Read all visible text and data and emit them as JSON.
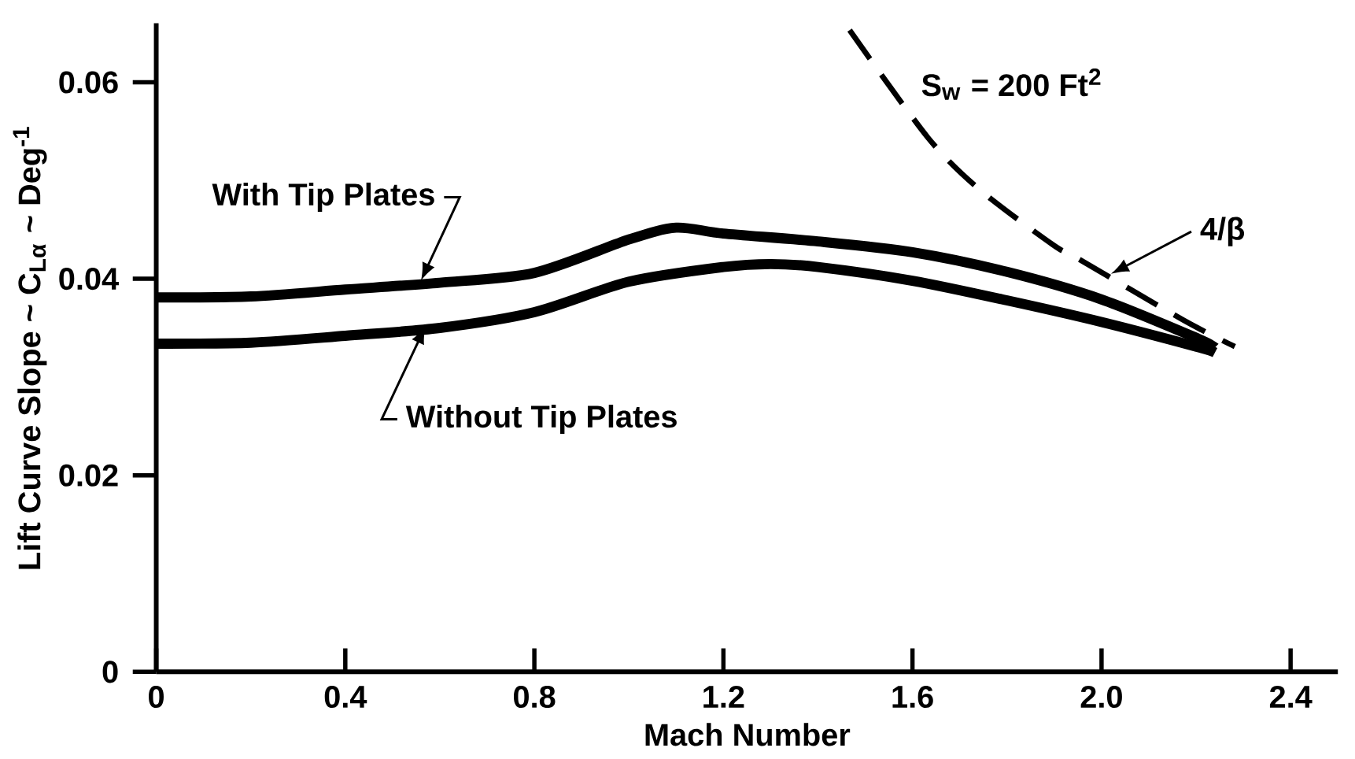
{
  "chart_data": {
    "type": "line",
    "xlabel": "Mach Number",
    "ylabel": "Lift Curve Slope ~ C$_{Lα}$ ~ Deg$^{-1}$",
    "xlim": [
      0,
      2.5
    ],
    "ylim": [
      0,
      0.066
    ],
    "xticks": [
      0,
      0.4,
      0.8,
      1.2,
      1.6,
      {
        "value": 2,
        "label": "2.0"
      },
      2.4
    ],
    "yticks": [
      0,
      0.02,
      0.04,
      0.06
    ],
    "grid": false,
    "marker": "none",
    "series": [
      {
        "color": "#000000",
        "line_style": "solid",
        "x": [
          0,
          0.2,
          0.4,
          0.6,
          0.8,
          1.0,
          1.1,
          1.2,
          1.4,
          1.6,
          1.8,
          2.0,
          2.2,
          2.24
        ],
        "values": [
          0.0381,
          0.0382,
          0.0389,
          0.0396,
          0.0406,
          0.044,
          0.0452,
          0.0446,
          0.0438,
          0.0427,
          0.0407,
          0.0379,
          0.034,
          0.033
        ]
      },
      {
        "color": "#000000",
        "line_style": "solid",
        "x": [
          0,
          0.2,
          0.4,
          0.6,
          0.8,
          1.0,
          1.2,
          1.3,
          1.4,
          1.6,
          1.8,
          2.0,
          2.2,
          2.24
        ],
        "values": [
          0.0334,
          0.0335,
          0.0342,
          0.035,
          0.0366,
          0.0397,
          0.0412,
          0.0415,
          0.0412,
          0.0398,
          0.0378,
          0.0356,
          0.0331,
          0.0325
        ]
      },
      {
        "color": "#000000",
        "line_style": "dashed",
        "x": [
          1.467,
          1.632,
          1.744,
          1.896,
          1.952,
          2.173,
          2.282
        ],
        "values": [
          0.0653,
          0.0544,
          0.049,
          0.0435,
          0.042,
          0.0358,
          0.0331
        ]
      }
    ],
    "annotations": [
      {
        "text": "With Tip Plates",
        "x": 0.56,
        "y": 0.0398
      },
      {
        "text": "Without Tip Plates",
        "x": 0.57,
        "y": 0.0352
      },
      {
        "text": "S$_{w}$ = 200 Ft$^{2}$",
        "x": 1.55,
        "y": 0.0598
      },
      {
        "text": "4/β",
        "x": 2.02,
        "y": 0.0405
      }
    ]
  }
}
